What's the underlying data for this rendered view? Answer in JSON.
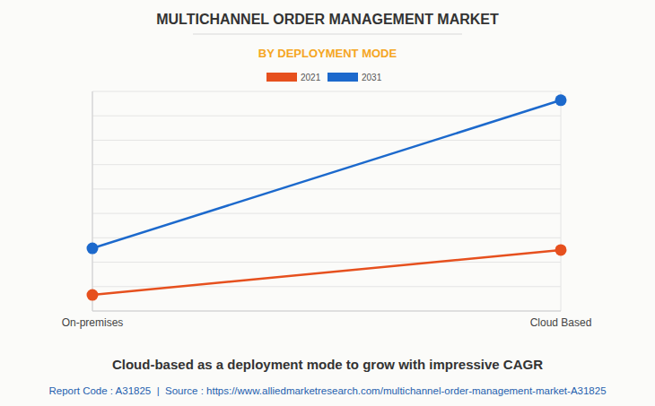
{
  "chart_data": {
    "type": "line",
    "title": "MULTICHANNEL ORDER MANAGEMENT MARKET",
    "subtitle": "BY DEPLOYMENT MODE",
    "categories": [
      "On-premises",
      "Cloud Based"
    ],
    "series": [
      {
        "name": "2021",
        "color": "#e6501e",
        "values": [
          0.66,
          2.5
        ],
        "marker": "circle"
      },
      {
        "name": "2031",
        "color": "#1c69cc",
        "values": [
          2.57,
          8.64
        ],
        "marker": "circle"
      }
    ],
    "ylim": [
      0,
      9
    ],
    "yticks": [
      0,
      1,
      2,
      3,
      4,
      5,
      6,
      7,
      8,
      9
    ],
    "grid": true,
    "legend": "top",
    "tick_labels": "x",
    "annotations": [
      "Cloud-based as a deployment mode to grow with impressive CAGR",
      "Report Code : A31825  |  Source : https://www.alliedmarketresearch.com/multichannel-order-management-market-A31825"
    ]
  }
}
